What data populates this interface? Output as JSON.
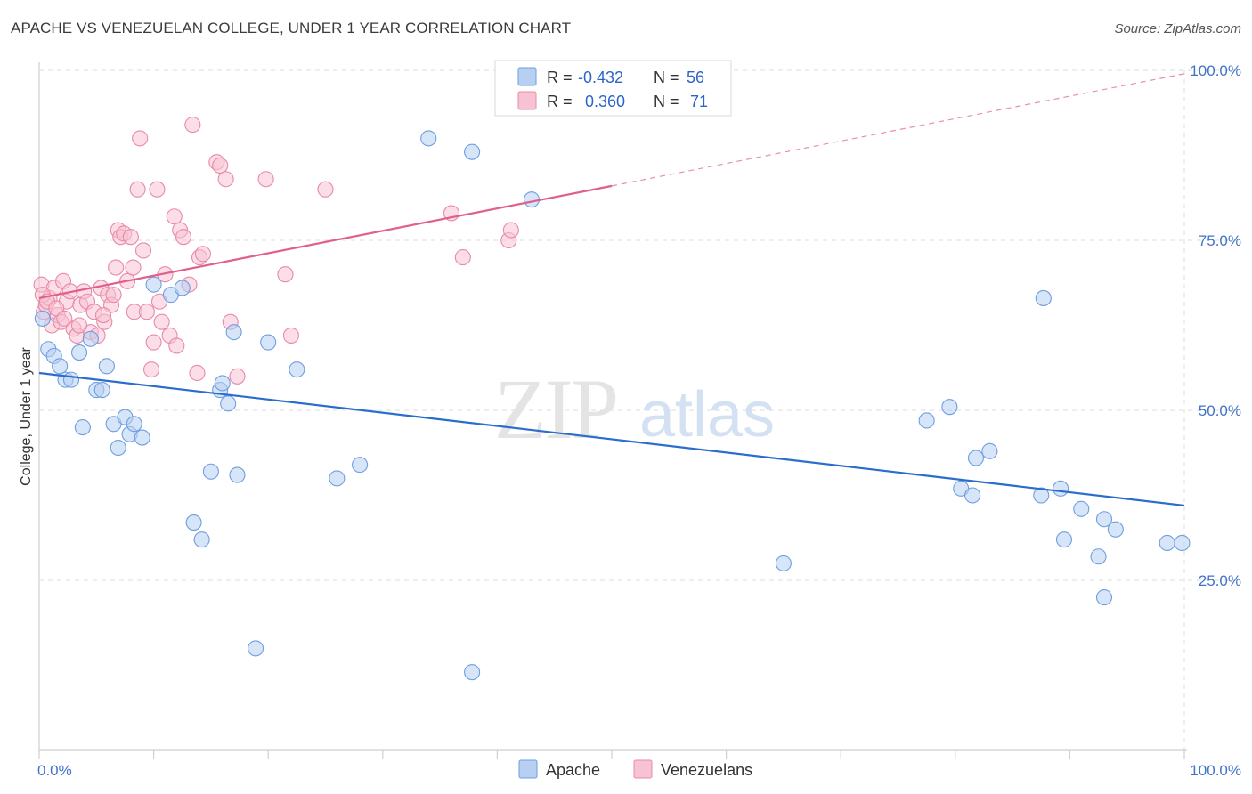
{
  "title": "APACHE VS VENEZUELAN COLLEGE, UNDER 1 YEAR CORRELATION CHART",
  "source": "Source: ZipAtlas.com",
  "watermark": {
    "zip": "ZIP",
    "atlas": "atlas"
  },
  "colors": {
    "apache_fill": "#b7d0f2",
    "apache_stroke": "#6f9ee0",
    "apache_line": "#2a6dcc",
    "venez_fill": "#f7c3d3",
    "venez_stroke": "#e88aa8",
    "venez_line": "#e0608a",
    "tick_label": "#3f73c9",
    "grid": "#dcdcdc"
  },
  "legend": {
    "r_label": "R =",
    "n_label": "N =",
    "apache_r": "-0.432",
    "apache_n": "56",
    "venez_r": "0.360",
    "venez_n": "71"
  },
  "bottom_legend": {
    "apache": "Apache",
    "venez": "Venezuelans"
  },
  "chart_data": {
    "type": "scatter",
    "title": "APACHE VS VENEZUELAN COLLEGE, UNDER 1 YEAR CORRELATION CHART",
    "xlabel": "",
    "ylabel": "College, Under 1 year",
    "xlim": [
      0,
      100
    ],
    "ylim": [
      0,
      100
    ],
    "x_tick_labels": {
      "min": "0.0%",
      "max": "100.0%"
    },
    "y_ticks": [
      {
        "value": 25,
        "label": "25.0%"
      },
      {
        "value": 50,
        "label": "50.0%"
      },
      {
        "value": 75,
        "label": "75.0%"
      },
      {
        "value": 100,
        "label": "100.0%"
      }
    ],
    "grid": true,
    "legend_position": "top-center",
    "series": [
      {
        "name": "Apache",
        "r": -0.432,
        "n": 56,
        "trend": {
          "x": [
            0,
            100
          ],
          "y": [
            55.5,
            36.0
          ]
        },
        "points": [
          [
            0.3,
            63.5
          ],
          [
            0.8,
            59.0
          ],
          [
            1.3,
            58.0
          ],
          [
            1.8,
            56.5
          ],
          [
            2.3,
            54.5
          ],
          [
            2.8,
            54.5
          ],
          [
            3.5,
            58.5
          ],
          [
            3.8,
            47.5
          ],
          [
            4.5,
            60.5
          ],
          [
            5.0,
            53.0
          ],
          [
            5.5,
            53.0
          ],
          [
            5.9,
            56.5
          ],
          [
            6.5,
            48.0
          ],
          [
            6.9,
            44.5
          ],
          [
            7.5,
            49.0
          ],
          [
            7.9,
            46.5
          ],
          [
            8.3,
            48.0
          ],
          [
            9.0,
            46.0
          ],
          [
            10.0,
            68.5
          ],
          [
            11.5,
            67.0
          ],
          [
            12.5,
            68.0
          ],
          [
            13.5,
            33.5
          ],
          [
            14.2,
            31.0
          ],
          [
            15.0,
            41.0
          ],
          [
            15.8,
            53.0
          ],
          [
            16.0,
            54.0
          ],
          [
            16.5,
            51.0
          ],
          [
            17.0,
            61.5
          ],
          [
            17.3,
            40.5
          ],
          [
            18.9,
            15.0
          ],
          [
            20.0,
            60.0
          ],
          [
            22.5,
            56.0
          ],
          [
            26.0,
            40.0
          ],
          [
            28.0,
            42.0
          ],
          [
            34.0,
            90.0
          ],
          [
            37.8,
            88.0
          ],
          [
            37.8,
            11.5
          ],
          [
            43.0,
            81.0
          ],
          [
            65.0,
            27.5
          ],
          [
            77.5,
            48.5
          ],
          [
            79.5,
            50.5
          ],
          [
            80.5,
            38.5
          ],
          [
            81.5,
            37.5
          ],
          [
            81.8,
            43.0
          ],
          [
            83.0,
            44.0
          ],
          [
            87.5,
            37.5
          ],
          [
            87.7,
            66.5
          ],
          [
            89.2,
            38.5
          ],
          [
            89.5,
            31.0
          ],
          [
            91.0,
            35.5
          ],
          [
            92.5,
            28.5
          ],
          [
            93.0,
            34.0
          ],
          [
            93.0,
            22.5
          ],
          [
            94.0,
            32.5
          ],
          [
            98.5,
            30.5
          ],
          [
            99.8,
            30.5
          ]
        ]
      },
      {
        "name": "Venezuelans",
        "r": 0.36,
        "n": 71,
        "trend": {
          "x": [
            0,
            50
          ],
          "y": [
            66.5,
            83.0
          ],
          "dashed_to": {
            "x": 100,
            "y": 99.5
          }
        },
        "points": [
          [
            0.2,
            68.5
          ],
          [
            0.4,
            64.5
          ],
          [
            0.6,
            65.5
          ],
          [
            0.9,
            66.5
          ],
          [
            1.1,
            62.5
          ],
          [
            1.3,
            68.0
          ],
          [
            1.6,
            64.0
          ],
          [
            1.9,
            63.0
          ],
          [
            2.1,
            69.0
          ],
          [
            2.4,
            66.0
          ],
          [
            2.7,
            67.5
          ],
          [
            3.0,
            62.0
          ],
          [
            3.3,
            61.0
          ],
          [
            3.6,
            65.5
          ],
          [
            3.9,
            67.5
          ],
          [
            4.2,
            66.0
          ],
          [
            4.5,
            61.5
          ],
          [
            4.8,
            64.5
          ],
          [
            5.1,
            61.0
          ],
          [
            5.4,
            68.0
          ],
          [
            5.7,
            63.0
          ],
          [
            6.0,
            67.0
          ],
          [
            6.3,
            65.5
          ],
          [
            6.5,
            67.0
          ],
          [
            6.7,
            71.0
          ],
          [
            6.9,
            76.5
          ],
          [
            7.1,
            75.5
          ],
          [
            7.4,
            76.0
          ],
          [
            7.7,
            69.0
          ],
          [
            8.0,
            75.5
          ],
          [
            8.3,
            64.5
          ],
          [
            8.6,
            82.5
          ],
          [
            8.8,
            90.0
          ],
          [
            9.1,
            73.5
          ],
          [
            9.4,
            64.5
          ],
          [
            9.8,
            56.0
          ],
          [
            10.0,
            60.0
          ],
          [
            10.3,
            82.5
          ],
          [
            10.7,
            63.0
          ],
          [
            11.0,
            70.0
          ],
          [
            11.4,
            61.0
          ],
          [
            11.8,
            78.5
          ],
          [
            12.0,
            59.5
          ],
          [
            12.3,
            76.5
          ],
          [
            12.6,
            75.5
          ],
          [
            13.1,
            68.5
          ],
          [
            13.4,
            92.0
          ],
          [
            13.8,
            55.5
          ],
          [
            14.0,
            72.5
          ],
          [
            14.3,
            73.0
          ],
          [
            15.5,
            86.5
          ],
          [
            15.8,
            86.0
          ],
          [
            16.3,
            84.0
          ],
          [
            16.7,
            63.0
          ],
          [
            17.3,
            55.0
          ],
          [
            19.8,
            84.0
          ],
          [
            21.5,
            70.0
          ],
          [
            22.0,
            61.0
          ],
          [
            25.0,
            82.5
          ],
          [
            36.0,
            79.0
          ],
          [
            37.0,
            72.5
          ],
          [
            41.0,
            75.0
          ],
          [
            41.2,
            76.5
          ],
          [
            0.3,
            67.0
          ],
          [
            0.7,
            66.0
          ],
          [
            1.5,
            65.0
          ],
          [
            2.2,
            63.5
          ],
          [
            3.5,
            62.5
          ],
          [
            5.6,
            64.0
          ],
          [
            8.2,
            71.0
          ],
          [
            10.5,
            66.0
          ]
        ]
      }
    ]
  }
}
